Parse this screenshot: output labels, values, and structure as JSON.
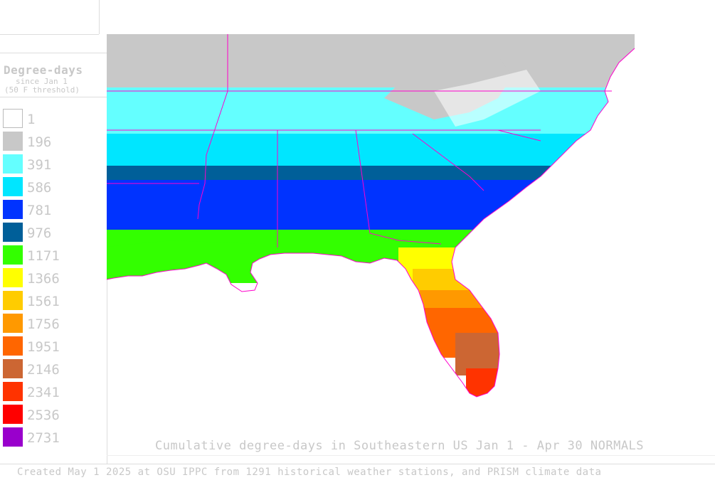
{
  "legend": {
    "title": "Degree-days",
    "subtitle": "since Jan 1",
    "threshold": "(50 F threshold)",
    "items": [
      {
        "label": "1",
        "color": "#ffffff"
      },
      {
        "label": "196",
        "color": "#c8c8c8"
      },
      {
        "label": "391",
        "color": "#64ffff"
      },
      {
        "label": "586",
        "color": "#00e6ff"
      },
      {
        "label": "781",
        "color": "#0033ff"
      },
      {
        "label": "976",
        "color": "#005f99"
      },
      {
        "label": "1171",
        "color": "#33ff00"
      },
      {
        "label": "1366",
        "color": "#ffff00"
      },
      {
        "label": "1561",
        "color": "#ffcc00"
      },
      {
        "label": "1756",
        "color": "#ff9900"
      },
      {
        "label": "1951",
        "color": "#ff6600"
      },
      {
        "label": "2146",
        "color": "#cc6633"
      },
      {
        "label": "2341",
        "color": "#ff3300"
      },
      {
        "label": "2536",
        "color": "#ff0000"
      },
      {
        "label": "2731",
        "color": "#9900cc"
      }
    ]
  },
  "map": {
    "region": "Southeastern US",
    "colors": {
      "state_border": "#ff00cc",
      "county_border": "#ffffff"
    }
  },
  "caption": "Cumulative degree-days in Southeastern US Jan 1 - Apr 30 NORMALS",
  "footer": "Created May 1 2025 at OSU IPPC from 1291 historical weather stations, and PRISM climate data"
}
